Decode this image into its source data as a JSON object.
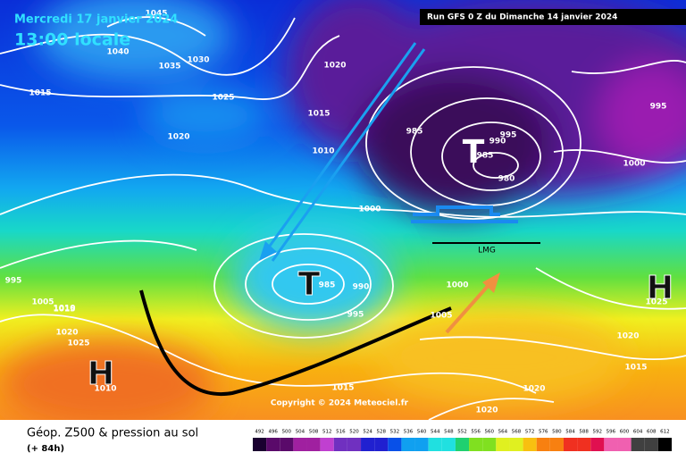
{
  "header": {
    "date": "Mercredi 17 janvier 2024",
    "time": "13:00 locale",
    "run": "Run GFS 0 Z du Dimanche 14 janvier 2024"
  },
  "map": {
    "isobar_labels": [
      "1045",
      "1040",
      "1035",
      "1030",
      "1015",
      "1025",
      "1020",
      "1020",
      "1015",
      "1010",
      "1000",
      "985",
      "990",
      "995",
      "985",
      "980",
      "995",
      "1000",
      "995",
      "1005",
      "1010",
      "1015",
      "985",
      "990",
      "995",
      "1005",
      "1000",
      "1020",
      "1025",
      "1010",
      "1015",
      "1020",
      "1020",
      "1015",
      "1025",
      "1020"
    ],
    "systems": [
      "T",
      "T",
      "H",
      "H"
    ],
    "front_label": "LMG",
    "copyright": "Copyright © 2024 Meteociel.fr"
  },
  "footer": {
    "title": "Géop. Z500 & pression au sol",
    "subtitle": "(+ 84h)"
  },
  "colorbar": {
    "labels": [
      492,
      496,
      500,
      504,
      508,
      512,
      516,
      520,
      524,
      528,
      532,
      536,
      540,
      544,
      548,
      552,
      556,
      560,
      564,
      568,
      572,
      576,
      580,
      584,
      588,
      592,
      596,
      600,
      604,
      608,
      612
    ]
  }
}
